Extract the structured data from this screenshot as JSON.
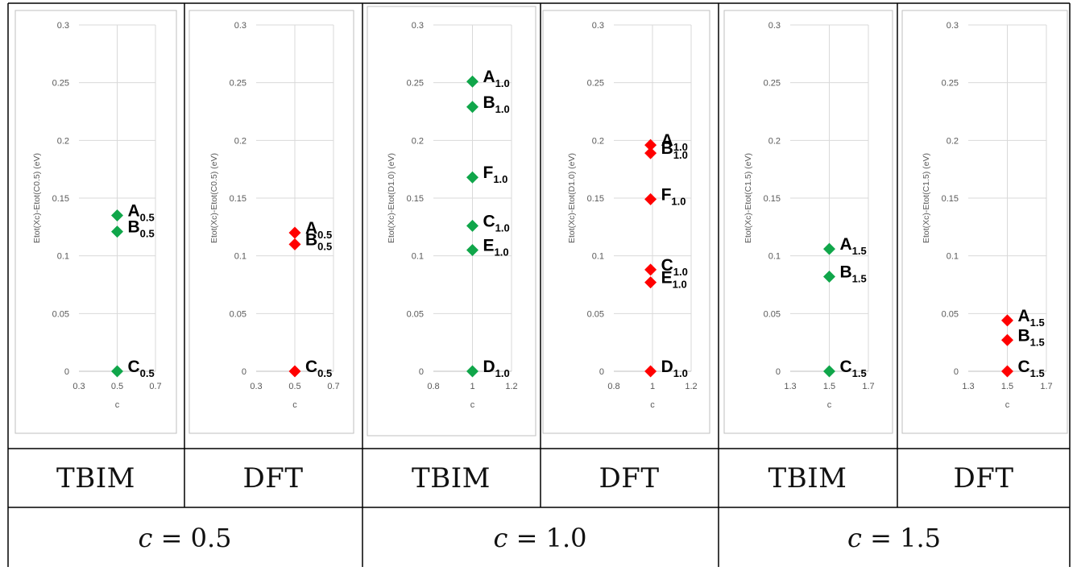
{
  "panel_labels": [
    "TBIM",
    "DFT",
    "TBIM",
    "DFT",
    "TBIM",
    "DFT"
  ],
  "group_labels": [
    {
      "var": "c",
      "op": "=",
      "value": "0.5"
    },
    {
      "var": "c",
      "op": "=",
      "value": "1.0"
    },
    {
      "var": "c",
      "op": "=",
      "value": "1.5"
    }
  ],
  "colors": {
    "tbim": "#10a64a",
    "dft": "#ff0000"
  },
  "chart_data": [
    {
      "type": "scatter",
      "method": "TBIM",
      "ylabel": "Etot(Xc)-Etot(C0.5)  (eV)",
      "xlabel": "c",
      "xlim": [
        0.3,
        0.7
      ],
      "xticks": [
        "0.3",
        "0.5",
        "0.7"
      ],
      "ylim": [
        0,
        0.3
      ],
      "yticks": [
        "0",
        "0.05",
        "0.1",
        "0.15",
        "0.2",
        "0.25",
        "0.3"
      ],
      "grid": true,
      "color": "#10a64a",
      "points": [
        {
          "x": 0.5,
          "y": 0.135,
          "label": "A",
          "sub": "0.5"
        },
        {
          "x": 0.5,
          "y": 0.121,
          "label": "B",
          "sub": "0.5"
        },
        {
          "x": 0.5,
          "y": 0.0,
          "label": "C",
          "sub": "0.5"
        }
      ]
    },
    {
      "type": "scatter",
      "method": "DFT",
      "ylabel": "Etot(Xc)-Etot(C0.5)  (eV)",
      "xlabel": "c",
      "xlim": [
        0.3,
        0.7
      ],
      "xticks": [
        "0.3",
        "0.5",
        "0.7"
      ],
      "ylim": [
        0,
        0.3
      ],
      "yticks": [
        "0",
        "0.05",
        "0.1",
        "0.15",
        "0.2",
        "0.25",
        "0.3"
      ],
      "grid": true,
      "color": "#ff0000",
      "points": [
        {
          "x": 0.5,
          "y": 0.12,
          "label": "A",
          "sub": "0.5"
        },
        {
          "x": 0.5,
          "y": 0.11,
          "label": "B",
          "sub": "0.5"
        },
        {
          "x": 0.5,
          "y": 0.0,
          "label": "C",
          "sub": "0.5"
        }
      ]
    },
    {
      "type": "scatter",
      "method": "TBIM",
      "ylabel": "Etot(Xc)-Etot(D1.0)  (eV)",
      "xlabel": "c",
      "xlim": [
        0.8,
        1.2
      ],
      "xticks": [
        "0.8",
        "1",
        "1.2"
      ],
      "ylim": [
        0,
        0.3
      ],
      "yticks": [
        "0",
        "0.05",
        "0.1",
        "0.15",
        "0.2",
        "0.25",
        "0.3"
      ],
      "grid": true,
      "color": "#10a64a",
      "points": [
        {
          "x": 1.0,
          "y": 0.251,
          "label": "A",
          "sub": "1.0"
        },
        {
          "x": 1.0,
          "y": 0.229,
          "label": "B",
          "sub": "1.0"
        },
        {
          "x": 1.0,
          "y": 0.168,
          "label": "F",
          "sub": "1.0"
        },
        {
          "x": 1.0,
          "y": 0.126,
          "label": "C",
          "sub": "1.0"
        },
        {
          "x": 1.0,
          "y": 0.105,
          "label": "E",
          "sub": "1.0"
        },
        {
          "x": 1.0,
          "y": 0.0,
          "label": "D",
          "sub": "1.0"
        }
      ]
    },
    {
      "type": "scatter",
      "method": "DFT",
      "ylabel": "Etot(Xc)-Etot(D1.0)  (eV)",
      "xlabel": "c",
      "xlim": [
        0.8,
        1.2
      ],
      "xticks": [
        "0.8",
        "1",
        "1.2"
      ],
      "ylim": [
        0,
        0.3
      ],
      "yticks": [
        "0",
        "0.05",
        "0.1",
        "0.15",
        "0.2",
        "0.25",
        "0.3"
      ],
      "grid": true,
      "color": "#ff0000",
      "points": [
        {
          "x": 0.99,
          "y": 0.196,
          "label": "A",
          "sub": "1.0"
        },
        {
          "x": 0.99,
          "y": 0.189,
          "label": "B",
          "sub": "1.0"
        },
        {
          "x": 0.99,
          "y": 0.149,
          "label": "F",
          "sub": "1.0"
        },
        {
          "x": 0.99,
          "y": 0.088,
          "label": "C",
          "sub": "1.0"
        },
        {
          "x": 0.99,
          "y": 0.077,
          "label": "E",
          "sub": "1.0"
        },
        {
          "x": 0.99,
          "y": 0.0,
          "label": "D",
          "sub": "1.0"
        }
      ]
    },
    {
      "type": "scatter",
      "method": "TBIM",
      "ylabel": "Etot(Xc)-Etot(C1.5)  (eV)",
      "xlabel": "c",
      "xlim": [
        1.3,
        1.7
      ],
      "xticks": [
        "1.3",
        "1.5",
        "1.7"
      ],
      "ylim": [
        0,
        0.3
      ],
      "yticks": [
        "0",
        "0.05",
        "0.1",
        "0.15",
        "0.2",
        "0.25",
        "0.3"
      ],
      "grid": true,
      "color": "#10a64a",
      "points": [
        {
          "x": 1.5,
          "y": 0.106,
          "label": "A",
          "sub": "1.5"
        },
        {
          "x": 1.5,
          "y": 0.082,
          "label": "B",
          "sub": "1.5"
        },
        {
          "x": 1.5,
          "y": 0.0,
          "label": "C",
          "sub": "1.5"
        }
      ]
    },
    {
      "type": "scatter",
      "method": "DFT",
      "ylabel": "Etot(Xc)-Etot(C1.5)  (eV)",
      "xlabel": "c",
      "xlim": [
        1.3,
        1.7
      ],
      "xticks": [
        "1.3",
        "1.5",
        "1.7"
      ],
      "ylim": [
        0,
        0.3
      ],
      "yticks": [
        "0",
        "0.05",
        "0.1",
        "0.15",
        "0.2",
        "0.25",
        "0.3"
      ],
      "grid": true,
      "color": "#ff0000",
      "points": [
        {
          "x": 1.5,
          "y": 0.044,
          "label": "A",
          "sub": "1.5"
        },
        {
          "x": 1.5,
          "y": 0.027,
          "label": "B",
          "sub": "1.5"
        },
        {
          "x": 1.5,
          "y": 0.0,
          "label": "C",
          "sub": "1.5"
        }
      ]
    }
  ]
}
